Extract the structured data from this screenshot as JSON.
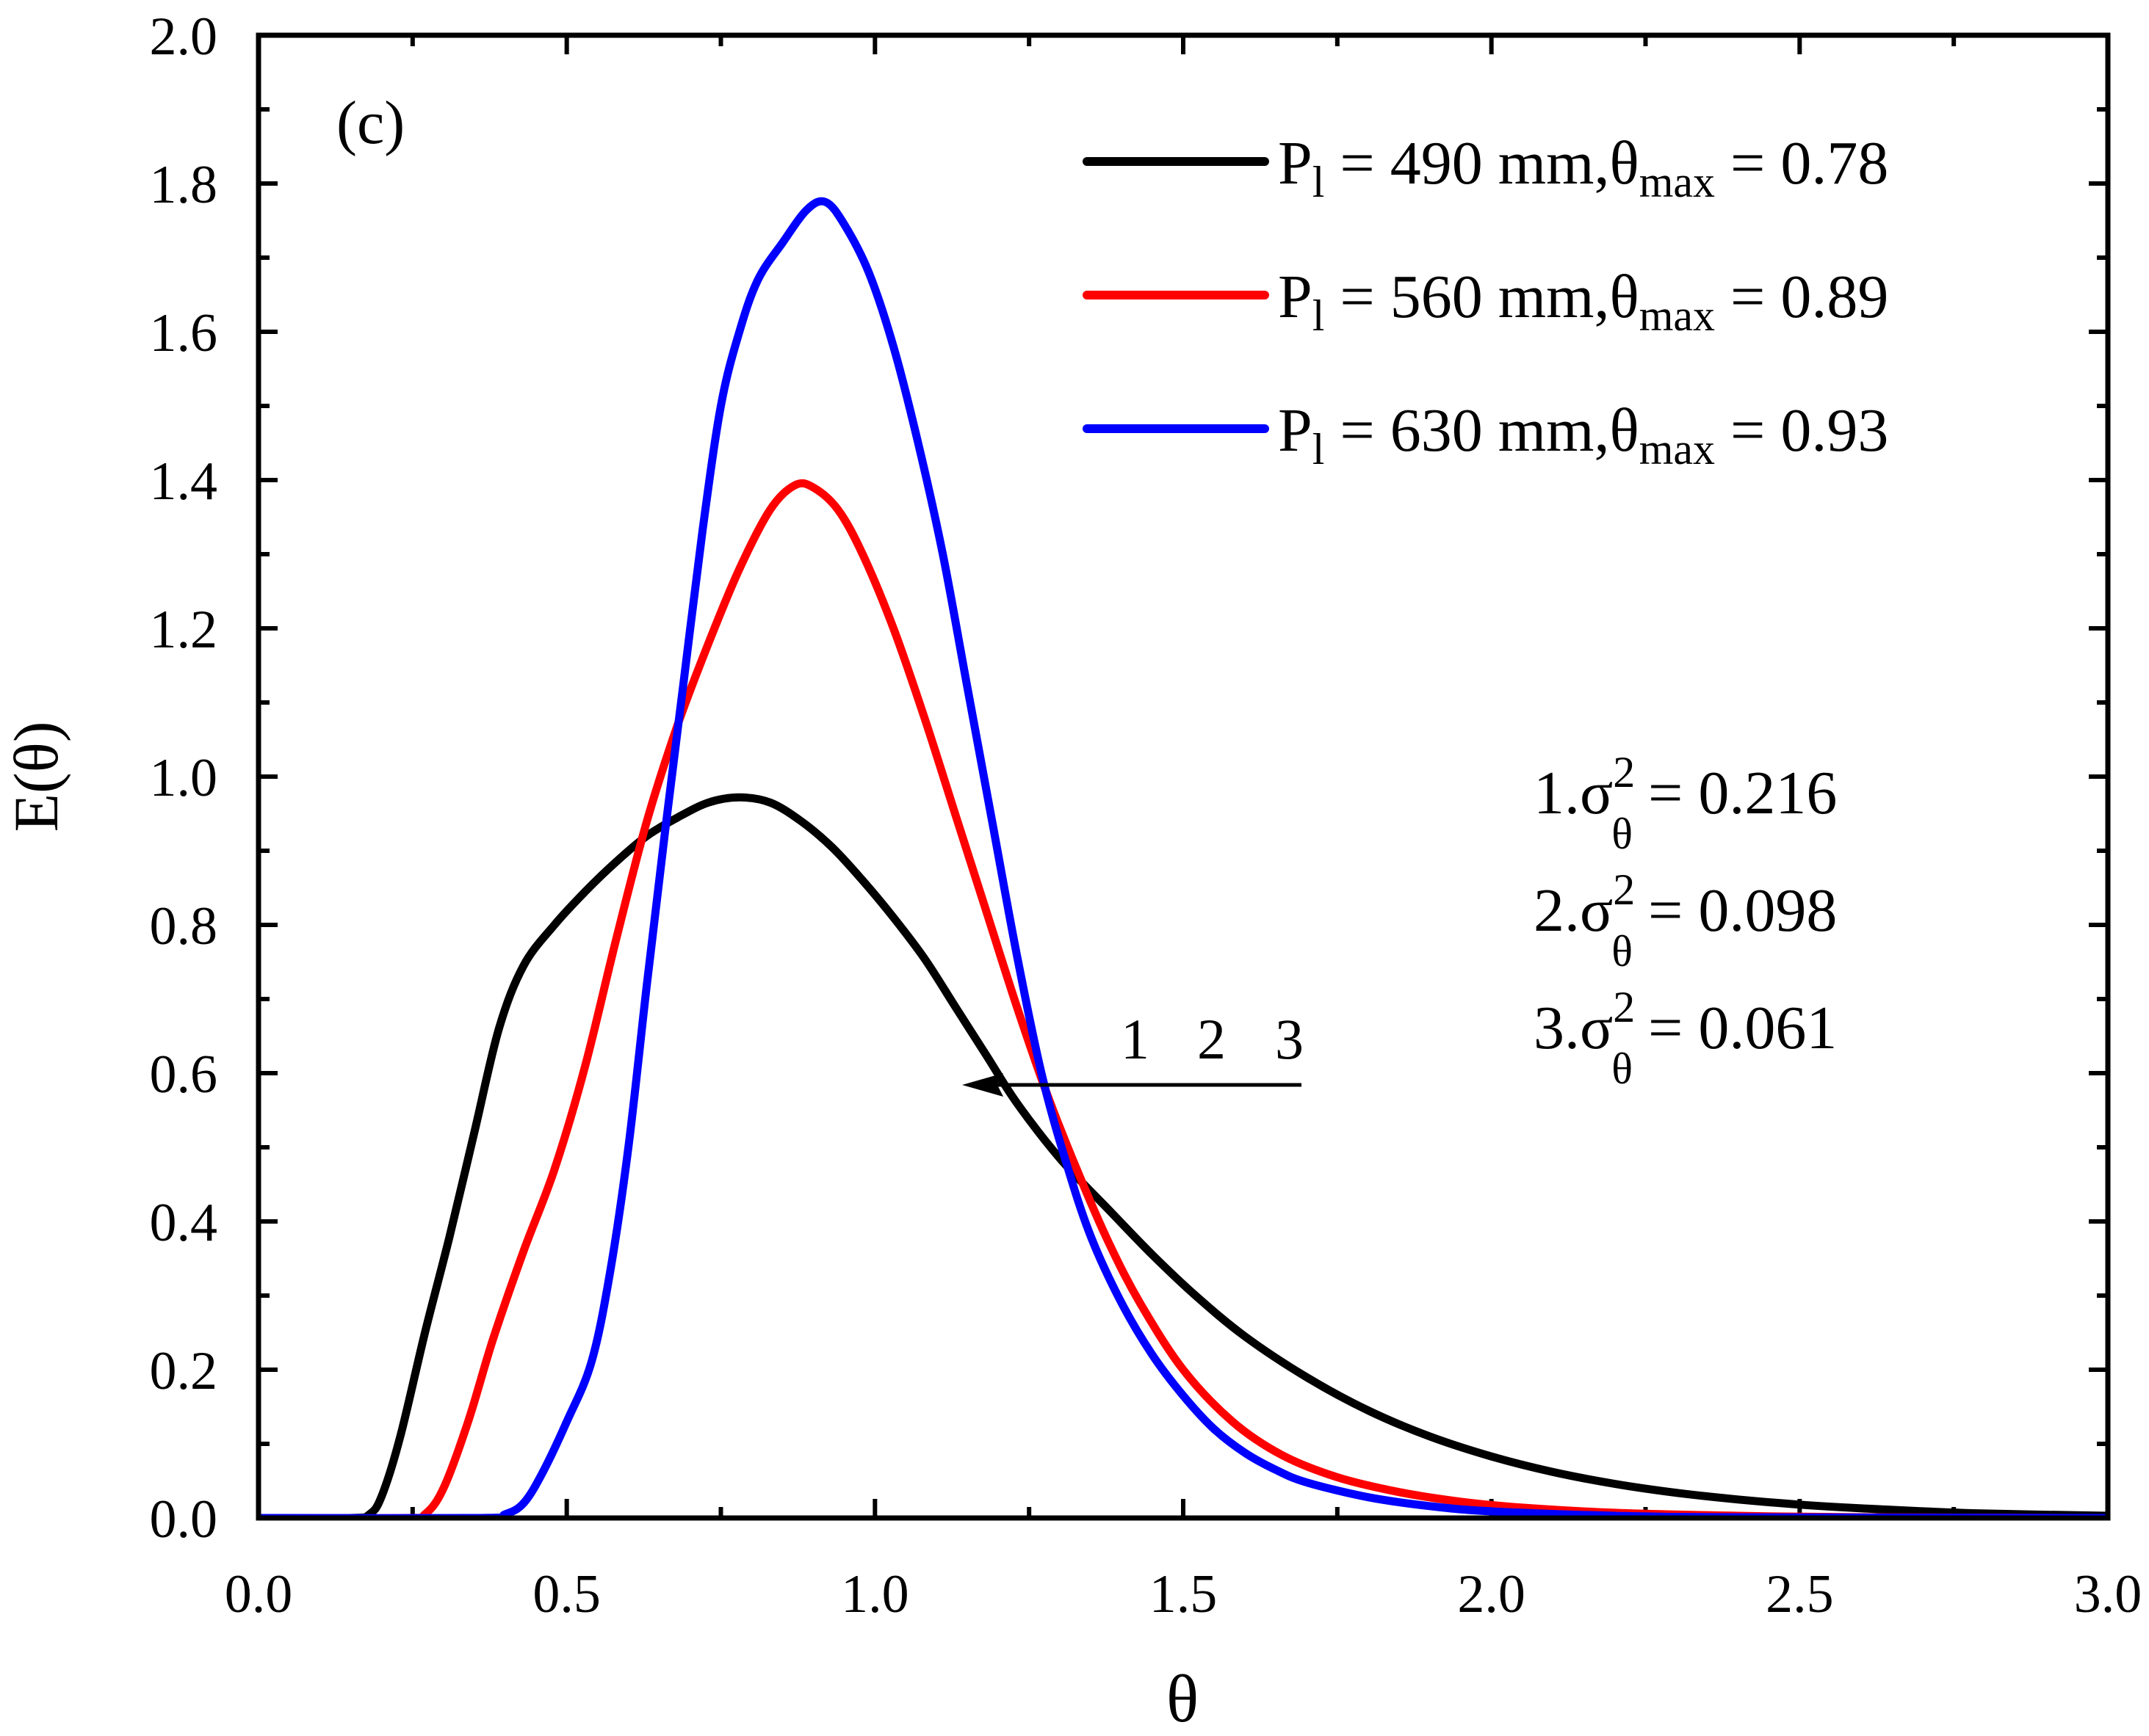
{
  "chart_data": {
    "type": "line",
    "panel_label": "(c)",
    "xlabel": "θ",
    "ylabel": "E(θ)",
    "xlim": [
      0,
      3.0
    ],
    "ylim": [
      0,
      2.0
    ],
    "x_ticks": [
      "0.0",
      "0.5",
      "1.0",
      "1.5",
      "2.0",
      "2.5",
      "3.0"
    ],
    "y_ticks": [
      "0.0",
      "0.2",
      "0.4",
      "0.6",
      "0.8",
      "1.0",
      "1.2",
      "1.4",
      "1.6",
      "1.8",
      "2.0"
    ],
    "series": [
      {
        "name": "P_l = 490 mm, θmax = 0.78",
        "legend": {
          "p_main": "P",
          "p_sub": "l",
          "mid": " = 490 mm,θ",
          "sub2": "max",
          "tail": " = 0.78"
        },
        "color": "#000000",
        "points": [
          [
            0,
            0
          ],
          [
            0.15,
            0
          ],
          [
            0.18,
            0.005
          ],
          [
            0.2,
            0.03
          ],
          [
            0.23,
            0.11
          ],
          [
            0.27,
            0.25
          ],
          [
            0.31,
            0.38
          ],
          [
            0.35,
            0.52
          ],
          [
            0.39,
            0.66
          ],
          [
            0.43,
            0.745
          ],
          [
            0.48,
            0.8
          ],
          [
            0.53,
            0.845
          ],
          [
            0.58,
            0.885
          ],
          [
            0.63,
            0.92
          ],
          [
            0.68,
            0.945
          ],
          [
            0.73,
            0.965
          ],
          [
            0.78,
            0.972
          ],
          [
            0.83,
            0.965
          ],
          [
            0.88,
            0.94
          ],
          [
            0.93,
            0.905
          ],
          [
            0.98,
            0.86
          ],
          [
            1.03,
            0.81
          ],
          [
            1.08,
            0.755
          ],
          [
            1.13,
            0.69
          ],
          [
            1.18,
            0.625
          ],
          [
            1.23,
            0.56
          ],
          [
            1.3,
            0.485
          ],
          [
            1.38,
            0.415
          ],
          [
            1.45,
            0.355
          ],
          [
            1.52,
            0.3
          ],
          [
            1.6,
            0.245
          ],
          [
            1.7,
            0.19
          ],
          [
            1.8,
            0.145
          ],
          [
            1.9,
            0.11
          ],
          [
            2.0,
            0.083
          ],
          [
            2.1,
            0.062
          ],
          [
            2.2,
            0.046
          ],
          [
            2.3,
            0.034
          ],
          [
            2.4,
            0.025
          ],
          [
            2.5,
            0.018
          ],
          [
            2.6,
            0.013
          ],
          [
            2.7,
            0.009
          ],
          [
            2.8,
            0.006
          ],
          [
            3.0,
            0.003
          ]
        ]
      },
      {
        "name": "P_l = 560 mm, θmax = 0.89",
        "legend": {
          "p_main": "P",
          "p_sub": "l",
          "mid": " = 560 mm,θ",
          "sub2": "max",
          "tail": " = 0.89"
        },
        "color": "#ff0000",
        "points": [
          [
            0,
            0
          ],
          [
            0.24,
            0
          ],
          [
            0.27,
            0.005
          ],
          [
            0.3,
            0.04
          ],
          [
            0.34,
            0.13
          ],
          [
            0.38,
            0.24
          ],
          [
            0.43,
            0.36
          ],
          [
            0.48,
            0.47
          ],
          [
            0.53,
            0.61
          ],
          [
            0.58,
            0.78
          ],
          [
            0.63,
            0.94
          ],
          [
            0.68,
            1.07
          ],
          [
            0.73,
            1.18
          ],
          [
            0.78,
            1.28
          ],
          [
            0.83,
            1.36
          ],
          [
            0.87,
            1.393
          ],
          [
            0.9,
            1.39
          ],
          [
            0.94,
            1.36
          ],
          [
            0.98,
            1.3
          ],
          [
            1.03,
            1.2
          ],
          [
            1.08,
            1.08
          ],
          [
            1.13,
            0.95
          ],
          [
            1.18,
            0.82
          ],
          [
            1.23,
            0.69
          ],
          [
            1.28,
            0.57
          ],
          [
            1.33,
            0.465
          ],
          [
            1.38,
            0.37
          ],
          [
            1.43,
            0.29
          ],
          [
            1.5,
            0.2
          ],
          [
            1.58,
            0.13
          ],
          [
            1.66,
            0.085
          ],
          [
            1.75,
            0.055
          ],
          [
            1.85,
            0.035
          ],
          [
            1.95,
            0.022
          ],
          [
            2.05,
            0.014
          ],
          [
            2.2,
            0.007
          ],
          [
            2.4,
            0.003
          ],
          [
            2.6,
            0.001
          ],
          [
            3.0,
            0
          ]
        ]
      },
      {
        "name": "P_l = 630 mm, θmax = 0.93",
        "legend": {
          "p_main": "P",
          "p_sub": "l",
          "mid": " = 630 mm,θ",
          "sub2": "max",
          "tail": " = 0.93"
        },
        "color": "#0000ff",
        "points": [
          [
            0,
            0
          ],
          [
            0.36,
            0
          ],
          [
            0.4,
            0.005
          ],
          [
            0.43,
            0.02
          ],
          [
            0.46,
            0.06
          ],
          [
            0.5,
            0.13
          ],
          [
            0.54,
            0.21
          ],
          [
            0.57,
            0.33
          ],
          [
            0.6,
            0.5
          ],
          [
            0.63,
            0.72
          ],
          [
            0.66,
            0.93
          ],
          [
            0.69,
            1.13
          ],
          [
            0.72,
            1.33
          ],
          [
            0.75,
            1.5
          ],
          [
            0.78,
            1.6
          ],
          [
            0.81,
            1.67
          ],
          [
            0.85,
            1.72
          ],
          [
            0.89,
            1.765
          ],
          [
            0.92,
            1.775
          ],
          [
            0.95,
            1.745
          ],
          [
            0.99,
            1.68
          ],
          [
            1.03,
            1.58
          ],
          [
            1.07,
            1.45
          ],
          [
            1.11,
            1.3
          ],
          [
            1.15,
            1.12
          ],
          [
            1.19,
            0.94
          ],
          [
            1.23,
            0.76
          ],
          [
            1.27,
            0.6
          ],
          [
            1.31,
            0.48
          ],
          [
            1.35,
            0.38
          ],
          [
            1.4,
            0.29
          ],
          [
            1.45,
            0.22
          ],
          [
            1.5,
            0.165
          ],
          [
            1.55,
            0.12
          ],
          [
            1.6,
            0.088
          ],
          [
            1.65,
            0.065
          ],
          [
            1.7,
            0.048
          ],
          [
            1.8,
            0.028
          ],
          [
            1.9,
            0.016
          ],
          [
            2.0,
            0.009
          ],
          [
            2.2,
            0.003
          ],
          [
            2.4,
            0.001
          ],
          [
            3.0,
            0
          ]
        ]
      }
    ],
    "variance_annotations": [
      {
        "prefix": "1.σ",
        "sup": "2",
        "sub": "θ",
        "tail": " = 0.216"
      },
      {
        "prefix": "2.σ",
        "sup": "2",
        "sub": "θ",
        "tail": " = 0.098"
      },
      {
        "prefix": "3.σ",
        "sup": "2",
        "sub": "θ",
        "tail": " = 0.061"
      }
    ],
    "arrow_labels": [
      "1",
      "2",
      "3"
    ]
  }
}
